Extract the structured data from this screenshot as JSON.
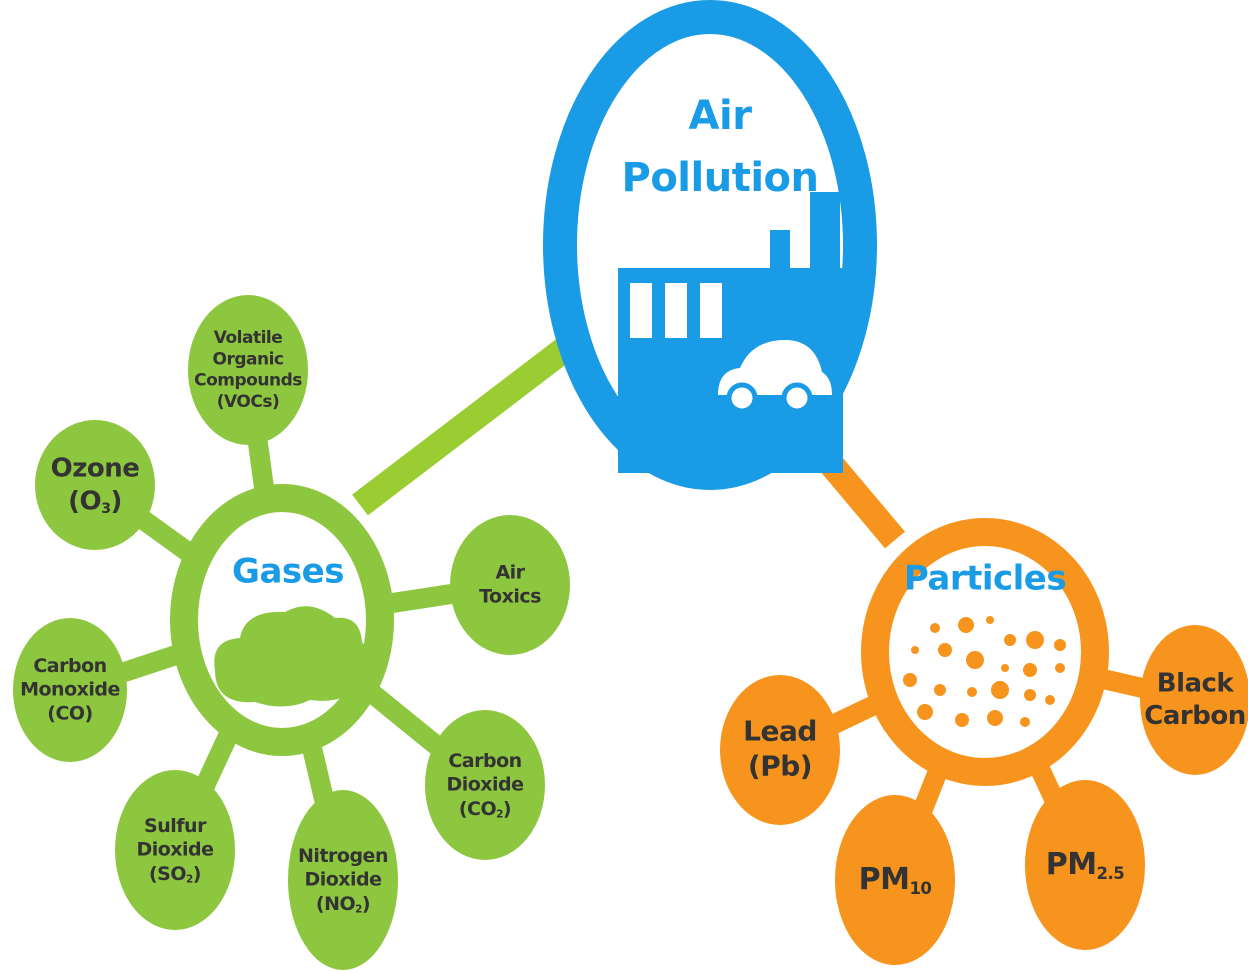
{
  "title": [
    "Air",
    "Pollution"
  ],
  "gases": {
    "label": "Gases",
    "nodes": [
      {
        "lines": [
          "Volatile",
          "Organic",
          "Compounds",
          "(VOCs)"
        ]
      },
      {
        "lines": [
          "Ozone",
          {
            "text": "(O",
            "sub": "3",
            "after": ")"
          }
        ]
      },
      {
        "lines": [
          "Air",
          "Toxics"
        ]
      },
      {
        "lines": [
          "Carbon",
          "Monoxide",
          "(CO)"
        ]
      },
      {
        "lines": [
          "Sulfur",
          "Dioxide",
          {
            "text": "(SO",
            "sub": "2",
            "after": ")"
          }
        ]
      },
      {
        "lines": [
          "Nitrogen",
          "Dioxide",
          {
            "text": "(NO",
            "sub": "2",
            "after": ")"
          }
        ]
      },
      {
        "lines": [
          "Carbon",
          "Dioxide",
          {
            "text": "(CO",
            "sub": "2",
            "after": ")"
          }
        ]
      }
    ]
  },
  "particles": {
    "label": "Particles",
    "nodes": [
      {
        "lines": [
          "Lead",
          "(Pb)"
        ]
      },
      {
        "lines": [
          {
            "text": "PM",
            "sub": "10"
          }
        ]
      },
      {
        "lines": [
          {
            "text": "PM",
            "sub": "2.5"
          }
        ]
      },
      {
        "lines": [
          "Black",
          "Carbon"
        ]
      }
    ]
  }
}
